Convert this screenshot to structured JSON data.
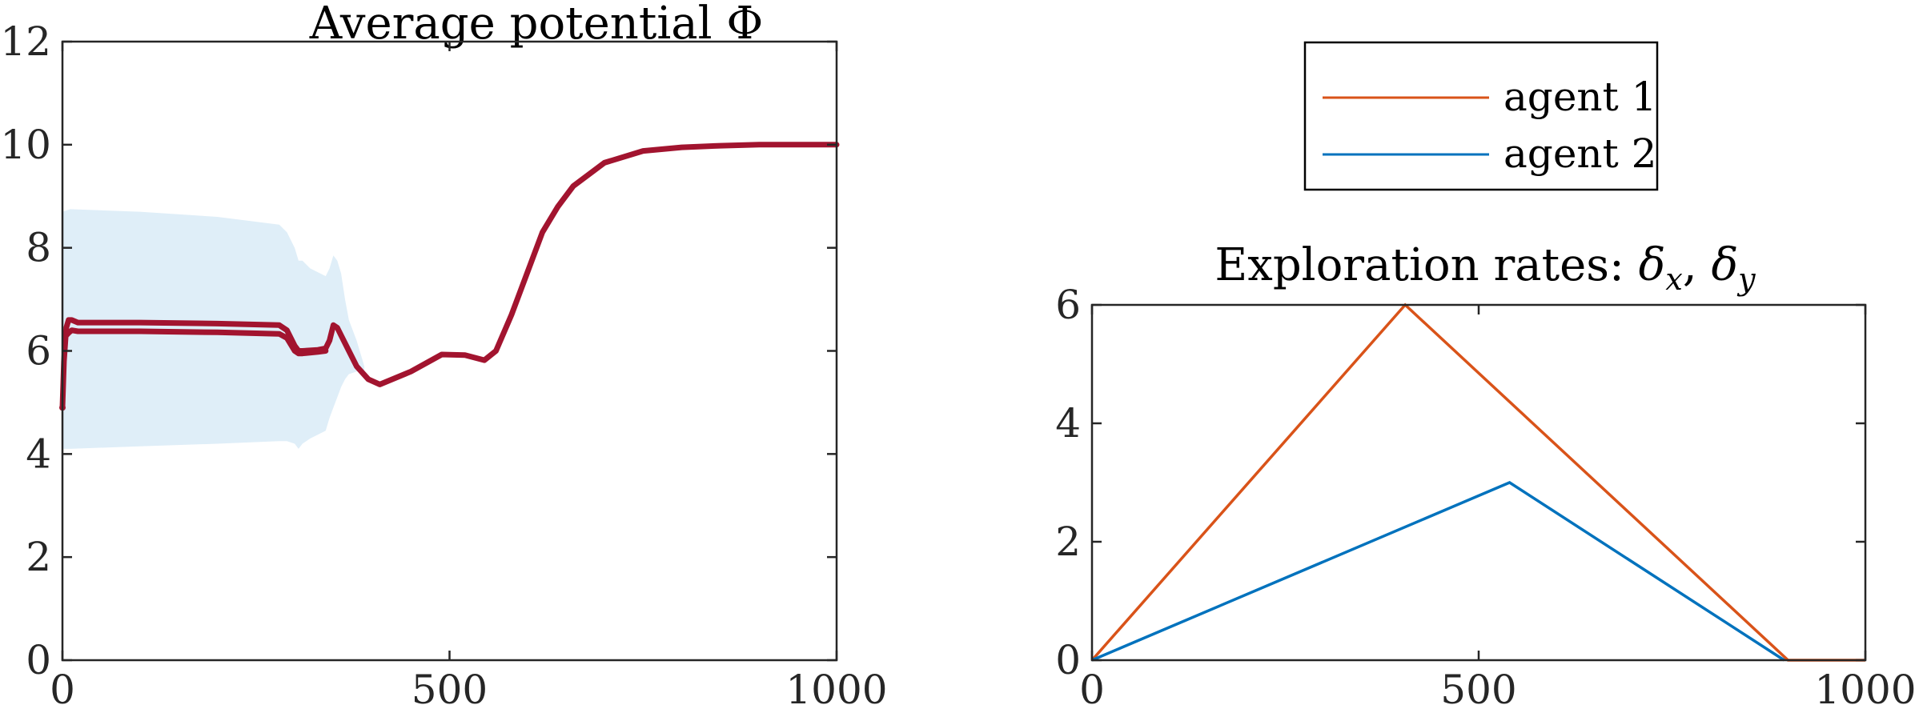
{
  "chart_data": [
    {
      "type": "line",
      "title": "Average potential Φ",
      "xlabel": "",
      "ylabel": "",
      "xlim": [
        0,
        1000
      ],
      "ylim": [
        0,
        12
      ],
      "xticks": [
        "0",
        "500",
        "1000"
      ],
      "yticks": [
        "0",
        "2",
        "4",
        "6",
        "8",
        "10",
        "12"
      ],
      "grid": false,
      "colors": {
        "line": "#A2142F",
        "band": "#dfeef8"
      },
      "band": {
        "x": [
          0,
          10,
          100,
          200,
          280,
          290,
          300,
          305,
          310,
          320,
          340,
          345,
          350,
          355,
          360,
          365,
          370,
          380,
          390
        ],
        "upper": [
          8.7,
          8.75,
          8.7,
          8.6,
          8.45,
          8.3,
          8.0,
          7.75,
          7.75,
          7.6,
          7.45,
          7.6,
          7.85,
          7.75,
          7.5,
          7.0,
          6.6,
          6.2,
          5.7
        ],
        "lower": [
          4.1,
          4.1,
          4.15,
          4.2,
          4.25,
          4.25,
          4.2,
          4.1,
          4.2,
          4.3,
          4.45,
          4.7,
          4.9,
          5.1,
          5.3,
          5.45,
          5.55,
          5.6,
          5.6
        ]
      },
      "series": [
        {
          "x": [
            0,
            2,
            5,
            8,
            12,
            20,
            100,
            200,
            280,
            290,
            300,
            305,
            310,
            330,
            340,
            345,
            350,
            355,
            360,
            370,
            380,
            395,
            410,
            450,
            490,
            520,
            545,
            560,
            580,
            600,
            620,
            640,
            660,
            700,
            750,
            800,
            850,
            900,
            1000
          ],
          "y": [
            4.9,
            5.8,
            6.45,
            6.6,
            6.6,
            6.55,
            6.55,
            6.53,
            6.5,
            6.4,
            6.1,
            6.0,
            6.0,
            6.02,
            6.05,
            6.2,
            6.5,
            6.45,
            6.3,
            6.0,
            5.7,
            5.45,
            5.35,
            5.6,
            5.93,
            5.92,
            5.82,
            6.0,
            6.7,
            7.5,
            8.3,
            8.8,
            9.2,
            9.65,
            9.88,
            9.95,
            9.98,
            10.0,
            10.0
          ]
        },
        {
          "x": [
            5,
            8,
            12,
            20,
            100,
            200,
            280,
            290,
            300,
            305,
            310,
            330,
            340
          ],
          "y": [
            6.3,
            6.35,
            6.4,
            6.38,
            6.38,
            6.36,
            6.33,
            6.25,
            6.0,
            5.95,
            5.95,
            5.98,
            6.0
          ]
        }
      ]
    },
    {
      "type": "line",
      "title": "Exploration rates: δx, δy",
      "title_main": "Exploration rates: ",
      "title_d1": "δ",
      "title_s1": "x",
      "title_sep": ", ",
      "title_d2": "δ",
      "title_s2": "y",
      "xlabel": "",
      "ylabel": "",
      "xlim": [
        0,
        1000
      ],
      "ylim": [
        0,
        6
      ],
      "xticks": [
        "0",
        "500",
        "1000"
      ],
      "yticks": [
        "0",
        "2",
        "4",
        "6"
      ],
      "grid": false,
      "legend": {
        "placement": "above",
        "entries": [
          "agent 1",
          "agent 2"
        ]
      },
      "series": [
        {
          "name": "agent 1",
          "color": "#D95319",
          "x": [
            0,
            405,
            900,
            1000
          ],
          "y": [
            0,
            6,
            0,
            0
          ]
        },
        {
          "name": "agent 2",
          "color": "#0072BD",
          "x": [
            0,
            540,
            895
          ],
          "y": [
            0,
            3,
            0
          ]
        }
      ]
    }
  ]
}
